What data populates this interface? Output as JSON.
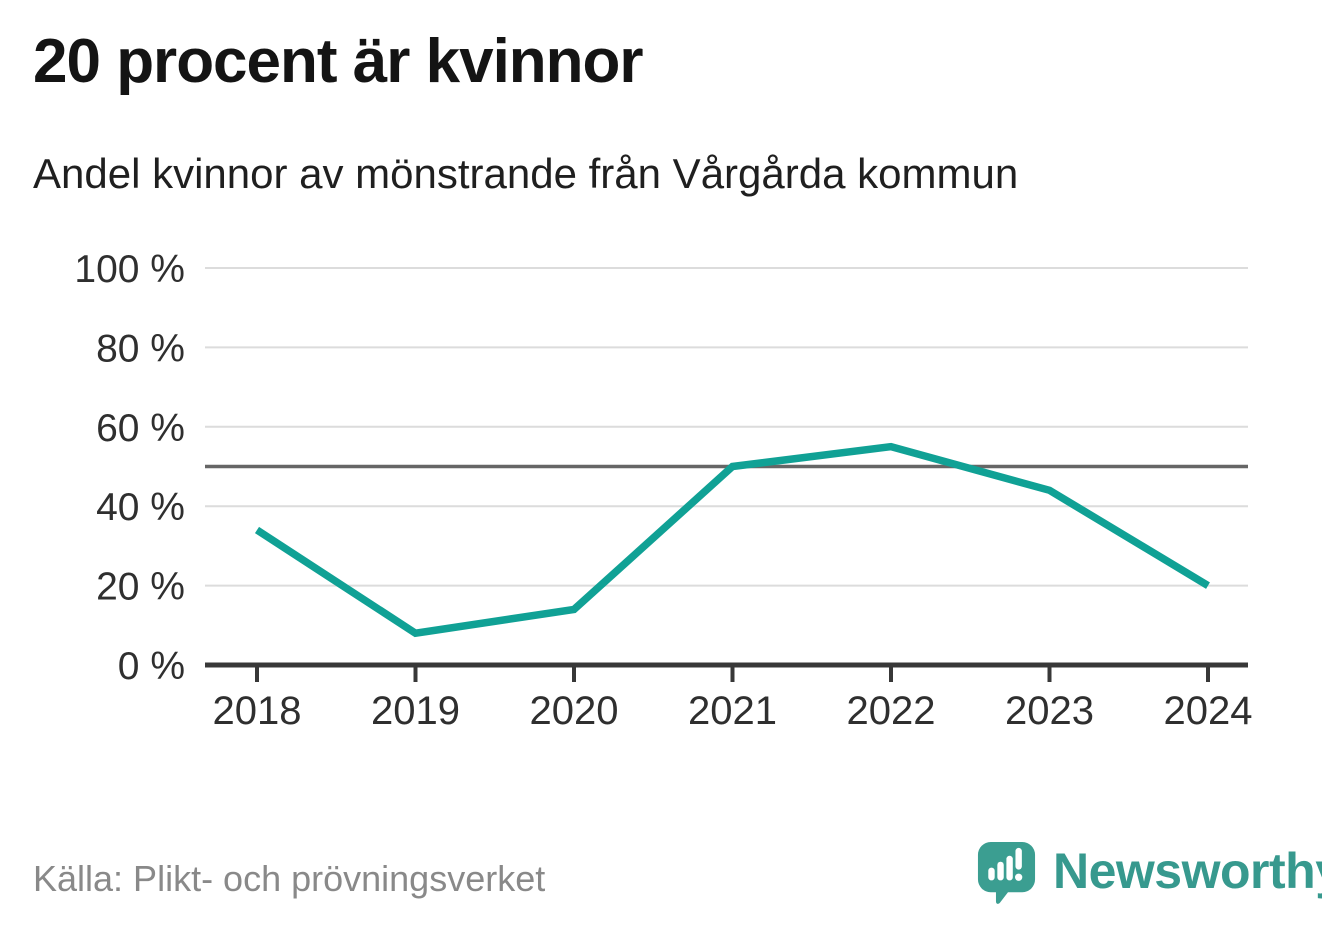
{
  "header": {
    "title": "20 procent är kvinnor",
    "subtitle": "Andel kvinnor av mönstrande från Vårgårda kommun"
  },
  "footer": {
    "source": "Källa: Plikt- och prövningsverket",
    "brand": "Newsworthy",
    "logo_icon": "speech-bubble-bar-chart-exclamation"
  },
  "colors": {
    "line": "#10a195",
    "grid": "#dcdcdc",
    "reference_line": "#666666",
    "axis": "#383838",
    "tick_label": "#2f2f2f",
    "title_text": "#141414",
    "subtitle_text": "#1f1f1f",
    "source_text": "#898989",
    "brand_teal": "#3b9e91"
  },
  "chart_data": {
    "type": "line",
    "x": [
      2018,
      2019,
      2020,
      2021,
      2022,
      2023,
      2024
    ],
    "x_labels": [
      "2018",
      "2019",
      "2020",
      "2021",
      "2022",
      "2023",
      "2024"
    ],
    "values": [
      34,
      8,
      14,
      50,
      55,
      44,
      20
    ],
    "unit": "%",
    "ylim": [
      0,
      100
    ],
    "yticks": [
      0,
      20,
      40,
      60,
      80,
      100
    ],
    "ytick_labels": [
      "0 %",
      "20 %",
      "40 %",
      "60 %",
      "80 %",
      "100 %"
    ],
    "reference_line": 50,
    "grid": "horizontal",
    "legend": "none",
    "title": "20 procent är kvinnor",
    "xlabel": "",
    "ylabel": ""
  }
}
